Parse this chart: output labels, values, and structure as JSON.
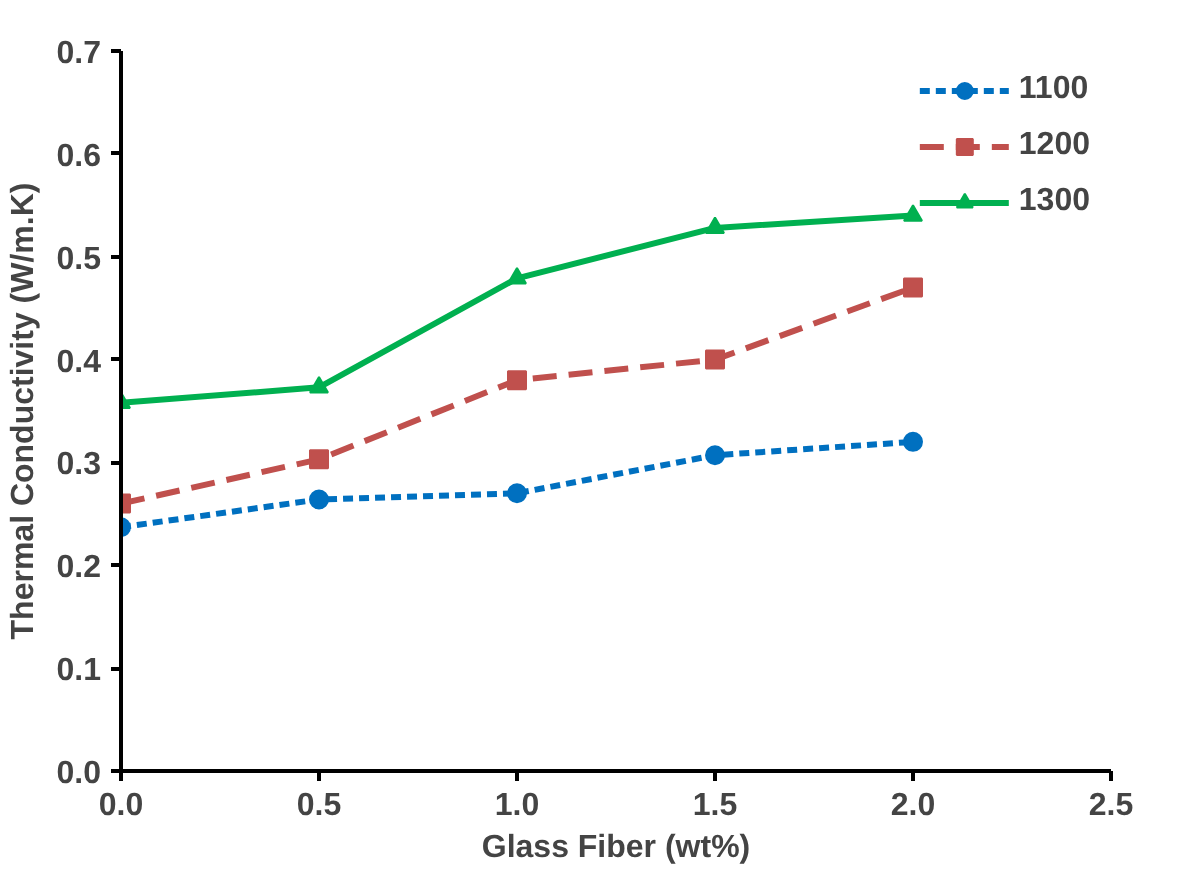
{
  "chart_data": {
    "type": "line",
    "xlabel": "Glass Fiber (wt%)",
    "ylabel": "Thermal Conductivity (W/m.K)",
    "x": [
      0,
      0.5,
      1,
      1.5,
      2
    ],
    "series": [
      {
        "name": "1100",
        "color": "#0070c0",
        "marker": "circle",
        "line_style": "dotted",
        "values": [
          0.237,
          0.264,
          0.27,
          0.307,
          0.32
        ]
      },
      {
        "name": "1200",
        "color": "#c0504d",
        "marker": "square",
        "line_style": "dashed",
        "values": [
          0.26,
          0.303,
          0.38,
          0.4,
          0.47
        ]
      },
      {
        "name": "1300",
        "color": "#00b050",
        "marker": "triangle",
        "line_style": "solid",
        "values": [
          0.358,
          0.373,
          0.479,
          0.528,
          0.54
        ]
      }
    ],
    "xlim": [
      0,
      2.5
    ],
    "ylim": [
      0,
      0.7
    ],
    "xticks": [
      {
        "value": 0,
        "label": "0.0"
      },
      {
        "value": 0.5,
        "label": "0.5"
      },
      {
        "value": 1,
        "label": "1.0"
      },
      {
        "value": 1.5,
        "label": "1.5"
      },
      {
        "value": 2,
        "label": "2.0"
      },
      {
        "value": 2.5,
        "label": "2.5"
      }
    ],
    "yticks": [
      {
        "value": 0,
        "label": "0.0"
      },
      {
        "value": 0.1,
        "label": "0.1"
      },
      {
        "value": 0.2,
        "label": "0.2"
      },
      {
        "value": 0.3,
        "label": "0.3"
      },
      {
        "value": 0.4,
        "label": "0.4"
      },
      {
        "value": 0.5,
        "label": "0.5"
      },
      {
        "value": 0.6,
        "label": "0.6"
      },
      {
        "value": 0.7,
        "label": "0.7"
      }
    ],
    "grid": false,
    "legend": "top right"
  }
}
